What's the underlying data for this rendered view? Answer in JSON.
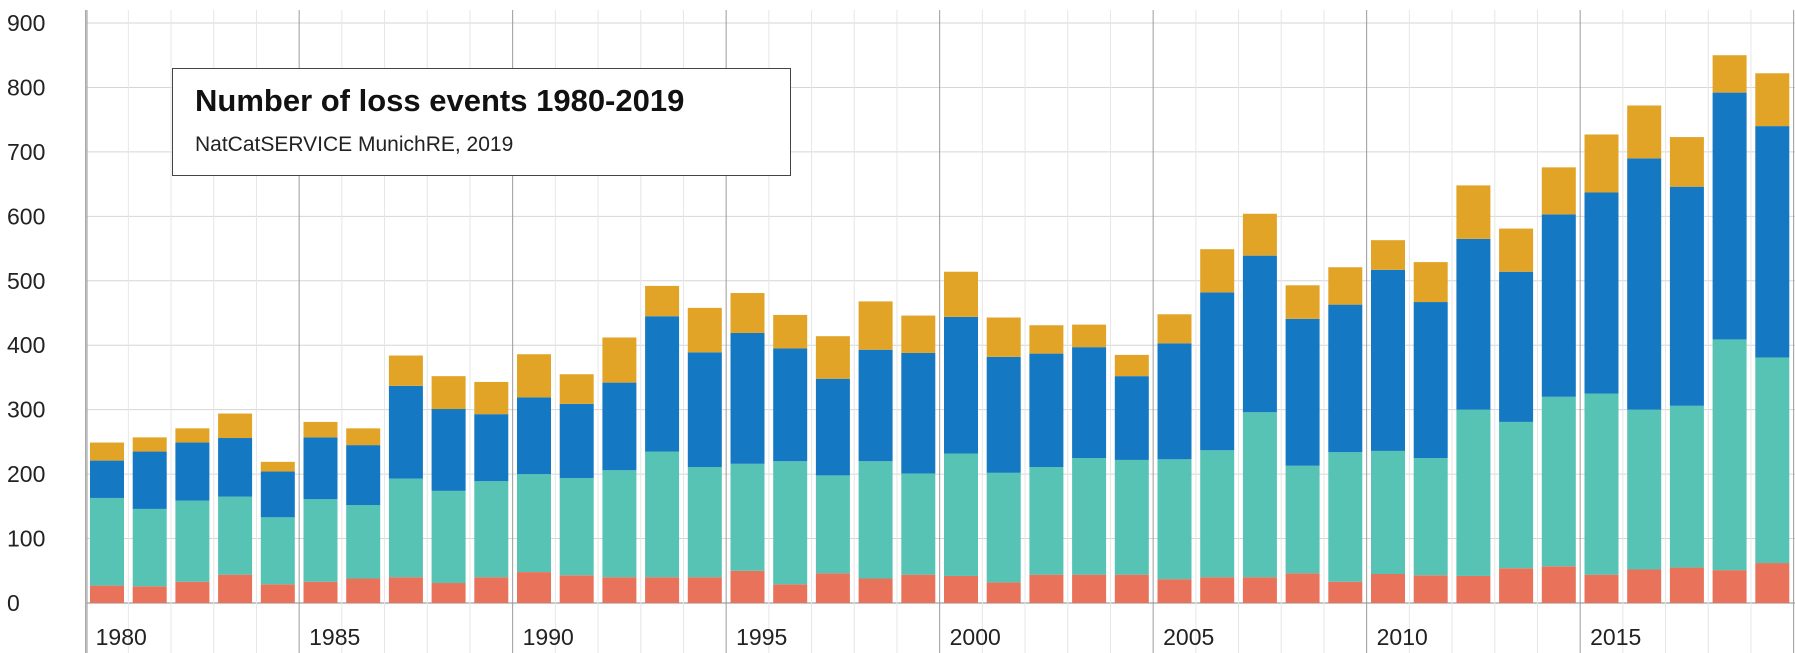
{
  "chart_data": {
    "type": "bar",
    "stacked": true,
    "title": "Number of loss events 1980-2019",
    "subtitle": "NatCatSERVICE MunichRE, 2019",
    "xlabel": "",
    "ylabel": "",
    "ylim": [
      0,
      900
    ],
    "yticks": [
      0,
      100,
      200,
      300,
      400,
      500,
      600,
      700,
      800,
      900
    ],
    "xtick_labels": [
      "1980",
      "1985",
      "1990",
      "1995",
      "2000",
      "2005",
      "2010",
      "2015"
    ],
    "grid": true,
    "categories": [
      "1980",
      "1981",
      "1982",
      "1983",
      "1984",
      "1985",
      "1986",
      "1987",
      "1988",
      "1989",
      "1990",
      "1991",
      "1992",
      "1993",
      "1994",
      "1995",
      "1996",
      "1997",
      "1998",
      "1999",
      "2000",
      "2001",
      "2002",
      "2003",
      "2004",
      "2005",
      "2006",
      "2007",
      "2008",
      "2009",
      "2010",
      "2011",
      "2012",
      "2013",
      "2014",
      "2015",
      "2016",
      "2017",
      "2018",
      "2019"
    ],
    "series": [
      {
        "color": "#e8735a",
        "values": [
          27,
          26,
          33,
          44,
          29,
          33,
          38,
          40,
          31,
          40,
          48,
          43,
          40,
          40,
          40,
          50,
          29,
          46,
          38,
          44,
          42,
          32,
          44,
          44,
          44,
          37,
          40,
          40,
          46,
          33,
          45,
          43,
          42,
          54,
          57,
          44,
          52,
          55,
          51,
          62
        ]
      },
      {
        "color": "#56c3b4",
        "values": [
          136,
          120,
          126,
          121,
          104,
          128,
          114,
          153,
          143,
          149,
          152,
          151,
          166,
          195,
          171,
          166,
          191,
          152,
          182,
          157,
          190,
          170,
          167,
          181,
          178,
          186,
          197,
          256,
          167,
          201,
          191,
          182,
          258,
          227,
          263,
          281,
          248,
          251,
          358,
          319
        ]
      },
      {
        "color": "#1478c2",
        "values": [
          58,
          89,
          90,
          91,
          71,
          96,
          93,
          144,
          127,
          104,
          119,
          115,
          136,
          210,
          178,
          203,
          175,
          150,
          173,
          187,
          212,
          180,
          176,
          172,
          130,
          180,
          245,
          243,
          228,
          229,
          281,
          242,
          265,
          233,
          283,
          312,
          390,
          340,
          383,
          359
        ]
      },
      {
        "color": "#e2a426",
        "values": [
          28,
          22,
          22,
          38,
          15,
          24,
          26,
          47,
          51,
          50,
          67,
          46,
          70,
          47,
          69,
          62,
          52,
          66,
          75,
          58,
          70,
          61,
          44,
          35,
          33,
          45,
          67,
          65,
          52,
          58,
          46,
          62,
          83,
          67,
          73,
          90,
          82,
          77,
          58,
          82
        ]
      }
    ]
  }
}
